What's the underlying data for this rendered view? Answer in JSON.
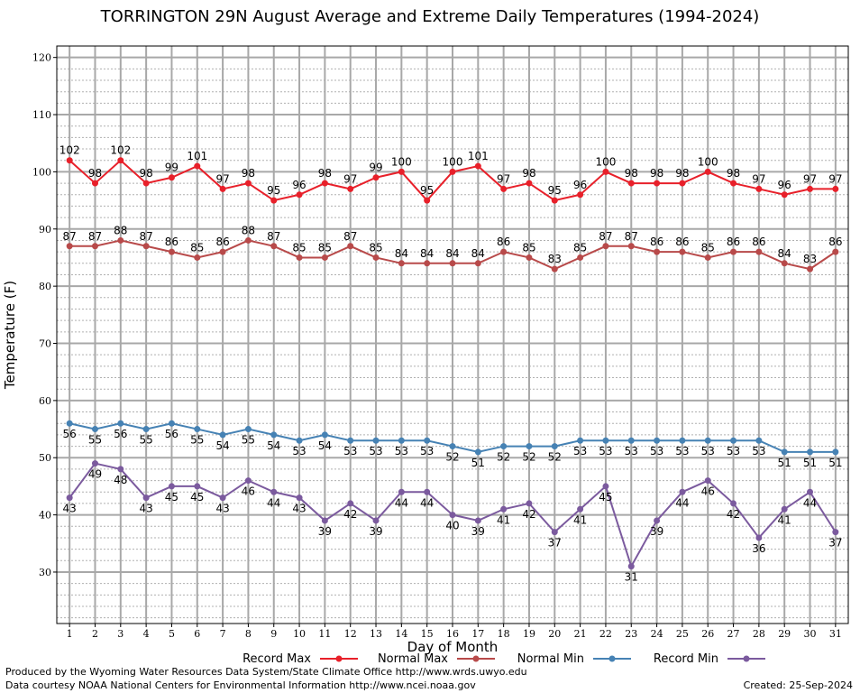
{
  "chart_data": {
    "type": "line",
    "title": "TORRINGTON 29N August Average and Extreme Daily Temperatures (1994-2024)",
    "xlabel": "Day of Month",
    "ylabel": "Temperature (F)",
    "ylim": [
      21,
      122
    ],
    "yticks": [
      30,
      40,
      50,
      60,
      70,
      80,
      90,
      100,
      110,
      120
    ],
    "x": [
      1,
      2,
      3,
      4,
      5,
      6,
      7,
      8,
      9,
      10,
      11,
      12,
      13,
      14,
      15,
      16,
      17,
      18,
      19,
      20,
      21,
      22,
      23,
      24,
      25,
      26,
      27,
      28,
      29,
      30,
      31
    ],
    "grid": true,
    "legend_position": "bottom",
    "series": [
      {
        "name": "Record Max",
        "color": "#e8202a",
        "label_position": "above",
        "values": [
          102,
          98,
          102,
          98,
          99,
          101,
          97,
          98,
          95,
          96,
          98,
          97,
          99,
          100,
          95,
          100,
          101,
          97,
          98,
          95,
          96,
          100,
          98,
          98,
          98,
          100,
          98,
          97,
          96,
          97,
          97
        ]
      },
      {
        "name": "Normal Max",
        "color": "#b84a4a",
        "label_position": "above",
        "values": [
          87,
          87,
          88,
          87,
          86,
          85,
          86,
          88,
          87,
          85,
          85,
          87,
          85,
          84,
          84,
          84,
          84,
          86,
          85,
          83,
          85,
          87,
          87,
          86,
          86,
          85,
          86,
          86,
          84,
          83,
          86
        ]
      },
      {
        "name": "Normal Min",
        "color": "#4682b4",
        "label_position": "below",
        "values": [
          56,
          55,
          56,
          55,
          56,
          55,
          54,
          55,
          54,
          53,
          54,
          53,
          53,
          53,
          53,
          52,
          51,
          52,
          52,
          52,
          53,
          53,
          53,
          53,
          53,
          53,
          53,
          53,
          51,
          51,
          51
        ]
      },
      {
        "name": "Record Min",
        "color": "#7b5a9e",
        "label_position": "below",
        "values": [
          43,
          49,
          48,
          43,
          45,
          45,
          43,
          46,
          44,
          43,
          39,
          42,
          39,
          44,
          44,
          40,
          39,
          41,
          42,
          37,
          41,
          45,
          31,
          39,
          44,
          46,
          42,
          36,
          41,
          44,
          37
        ]
      }
    ]
  },
  "footer": {
    "produced_by": "Produced by the Wyoming Water Resources Data System/State Climate Office http://www.wrds.uwyo.edu",
    "courtesy": "Data courtesy NOAA National Centers for Environmental Information http://www.ncei.noaa.gov",
    "created": "Created:  25-Sep-2024"
  }
}
